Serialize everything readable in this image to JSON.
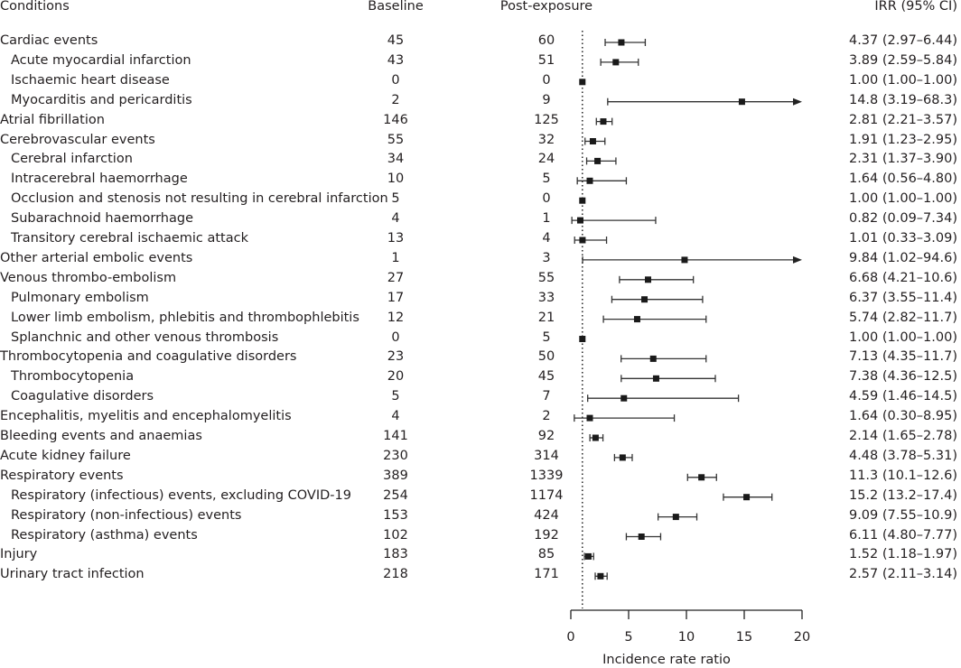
{
  "chart_data": {
    "type": "forest",
    "headers": {
      "conditions": "Conditions",
      "baseline": "Baseline",
      "post": "Post-exposure",
      "irr": "IRR (95% CI)"
    },
    "xlabel": "Incidence rate ratio",
    "xlim": [
      0,
      20
    ],
    "xticks": [
      "0",
      "5",
      "10",
      "15",
      "20"
    ],
    "reference_line": 1,
    "rows": [
      {
        "label": "Cardiac events",
        "sub": false,
        "baseline": "45",
        "post": "60",
        "irr": 4.37,
        "lo": 2.97,
        "hi": 6.44,
        "text": "4.37 (2.97–6.44)"
      },
      {
        "label": "Acute myocardial infarction",
        "sub": true,
        "baseline": "43",
        "post": "51",
        "irr": 3.89,
        "lo": 2.59,
        "hi": 5.84,
        "text": "3.89 (2.59–5.84)"
      },
      {
        "label": "Ischaemic heart disease",
        "sub": true,
        "baseline": "0",
        "post": "0",
        "irr": 1.0,
        "lo": 1.0,
        "hi": 1.0,
        "text": "1.00 (1.00–1.00)"
      },
      {
        "label": "Myocarditis and pericarditis",
        "sub": true,
        "baseline": "2",
        "post": "9",
        "irr": 14.8,
        "lo": 3.19,
        "hi": 68.3,
        "text": "14.8 (3.19–68.3)"
      },
      {
        "label": "Atrial fibrillation",
        "sub": false,
        "baseline": "146",
        "post": "125",
        "irr": 2.81,
        "lo": 2.21,
        "hi": 3.57,
        "text": "2.81 (2.21–3.57)"
      },
      {
        "label": "Cerebrovascular events",
        "sub": false,
        "baseline": "55",
        "post": "32",
        "irr": 1.91,
        "lo": 1.23,
        "hi": 2.95,
        "text": "1.91 (1.23–2.95)"
      },
      {
        "label": "Cerebral infarction",
        "sub": true,
        "baseline": "34",
        "post": "24",
        "irr": 2.31,
        "lo": 1.37,
        "hi": 3.9,
        "text": "2.31 (1.37–3.90)"
      },
      {
        "label": "Intracerebral haemorrhage",
        "sub": true,
        "baseline": "10",
        "post": "5",
        "irr": 1.64,
        "lo": 0.56,
        "hi": 4.8,
        "text": "1.64 (0.56–4.80)"
      },
      {
        "label": "Occlusion and stenosis not resulting in cerebral infarction",
        "sub": true,
        "baseline": "5",
        "post": "0",
        "irr": 1.0,
        "lo": 1.0,
        "hi": 1.0,
        "text": "1.00 (1.00–1.00)"
      },
      {
        "label": "Subarachnoid haemorrhage",
        "sub": true,
        "baseline": "4",
        "post": "1",
        "irr": 0.82,
        "lo": 0.09,
        "hi": 7.34,
        "text": "0.82 (0.09–7.34)"
      },
      {
        "label": "Transitory cerebral ischaemic attack",
        "sub": true,
        "baseline": "13",
        "post": "4",
        "irr": 1.01,
        "lo": 0.33,
        "hi": 3.09,
        "text": "1.01 (0.33–3.09)"
      },
      {
        "label": "Other arterial embolic events",
        "sub": false,
        "baseline": "1",
        "post": "3",
        "irr": 9.84,
        "lo": 1.02,
        "hi": 94.6,
        "text": "9.84 (1.02–94.6)"
      },
      {
        "label": "Venous thrombo-embolism",
        "sub": false,
        "baseline": "27",
        "post": "55",
        "irr": 6.68,
        "lo": 4.21,
        "hi": 10.6,
        "text": "6.68 (4.21–10.6)"
      },
      {
        "label": "Pulmonary embolism",
        "sub": true,
        "baseline": "17",
        "post": "33",
        "irr": 6.37,
        "lo": 3.55,
        "hi": 11.4,
        "text": "6.37 (3.55–11.4)"
      },
      {
        "label": "Lower limb embolism, phlebitis and thrombophlebitis",
        "sub": true,
        "baseline": "12",
        "post": "21",
        "irr": 5.74,
        "lo": 2.82,
        "hi": 11.7,
        "text": "5.74 (2.82–11.7)"
      },
      {
        "label": "Splanchnic and other venous thrombosis",
        "sub": true,
        "baseline": "0",
        "post": "5",
        "irr": 1.0,
        "lo": 1.0,
        "hi": 1.0,
        "text": "1.00 (1.00–1.00)"
      },
      {
        "label": "Thrombocytopenia and coagulative disorders",
        "sub": false,
        "baseline": "23",
        "post": "50",
        "irr": 7.13,
        "lo": 4.35,
        "hi": 11.7,
        "text": "7.13 (4.35–11.7)"
      },
      {
        "label": "Thrombocytopenia",
        "sub": true,
        "baseline": "20",
        "post": "45",
        "irr": 7.38,
        "lo": 4.36,
        "hi": 12.5,
        "text": "7.38 (4.36–12.5)"
      },
      {
        "label": "Coagulative disorders",
        "sub": true,
        "baseline": "5",
        "post": "7",
        "irr": 4.59,
        "lo": 1.46,
        "hi": 14.5,
        "text": "4.59 (1.46–14.5)"
      },
      {
        "label": "Encephalitis, myelitis and encephalomyelitis",
        "sub": false,
        "baseline": "4",
        "post": "2",
        "irr": 1.64,
        "lo": 0.3,
        "hi": 8.95,
        "text": "1.64 (0.30–8.95)"
      },
      {
        "label": "Bleeding events and anaemias",
        "sub": false,
        "baseline": "141",
        "post": "92",
        "irr": 2.14,
        "lo": 1.65,
        "hi": 2.78,
        "text": "2.14 (1.65–2.78)"
      },
      {
        "label": "Acute kidney failure",
        "sub": false,
        "baseline": "230",
        "post": "314",
        "irr": 4.48,
        "lo": 3.78,
        "hi": 5.31,
        "text": "4.48 (3.78–5.31)"
      },
      {
        "label": "Respiratory events",
        "sub": false,
        "baseline": "389",
        "post": "1339",
        "irr": 11.3,
        "lo": 10.1,
        "hi": 12.6,
        "text": "11.3 (10.1–12.6)"
      },
      {
        "label": "Respiratory (infectious) events, excluding COVID-19",
        "sub": true,
        "baseline": "254",
        "post": "1174",
        "irr": 15.2,
        "lo": 13.2,
        "hi": 17.4,
        "text": "15.2 (13.2–17.4)"
      },
      {
        "label": "Respiratory (non-infectious) events",
        "sub": true,
        "baseline": "153",
        "post": "424",
        "irr": 9.09,
        "lo": 7.55,
        "hi": 10.9,
        "text": "9.09 (7.55–10.9)"
      },
      {
        "label": "Respiratory (asthma) events",
        "sub": true,
        "baseline": "102",
        "post": "192",
        "irr": 6.11,
        "lo": 4.8,
        "hi": 7.77,
        "text": "6.11 (4.80–7.77)"
      },
      {
        "label": "Injury",
        "sub": false,
        "baseline": "183",
        "post": "85",
        "irr": 1.52,
        "lo": 1.18,
        "hi": 1.97,
        "text": "1.52 (1.18–1.97)"
      },
      {
        "label": "Urinary tract infection",
        "sub": false,
        "baseline": "218",
        "post": "171",
        "irr": 2.57,
        "lo": 2.11,
        "hi": 3.14,
        "text": "2.57 (2.11–3.14)"
      }
    ],
    "colors": {
      "text": "#231f20",
      "marks": "#1a1a1a"
    }
  }
}
